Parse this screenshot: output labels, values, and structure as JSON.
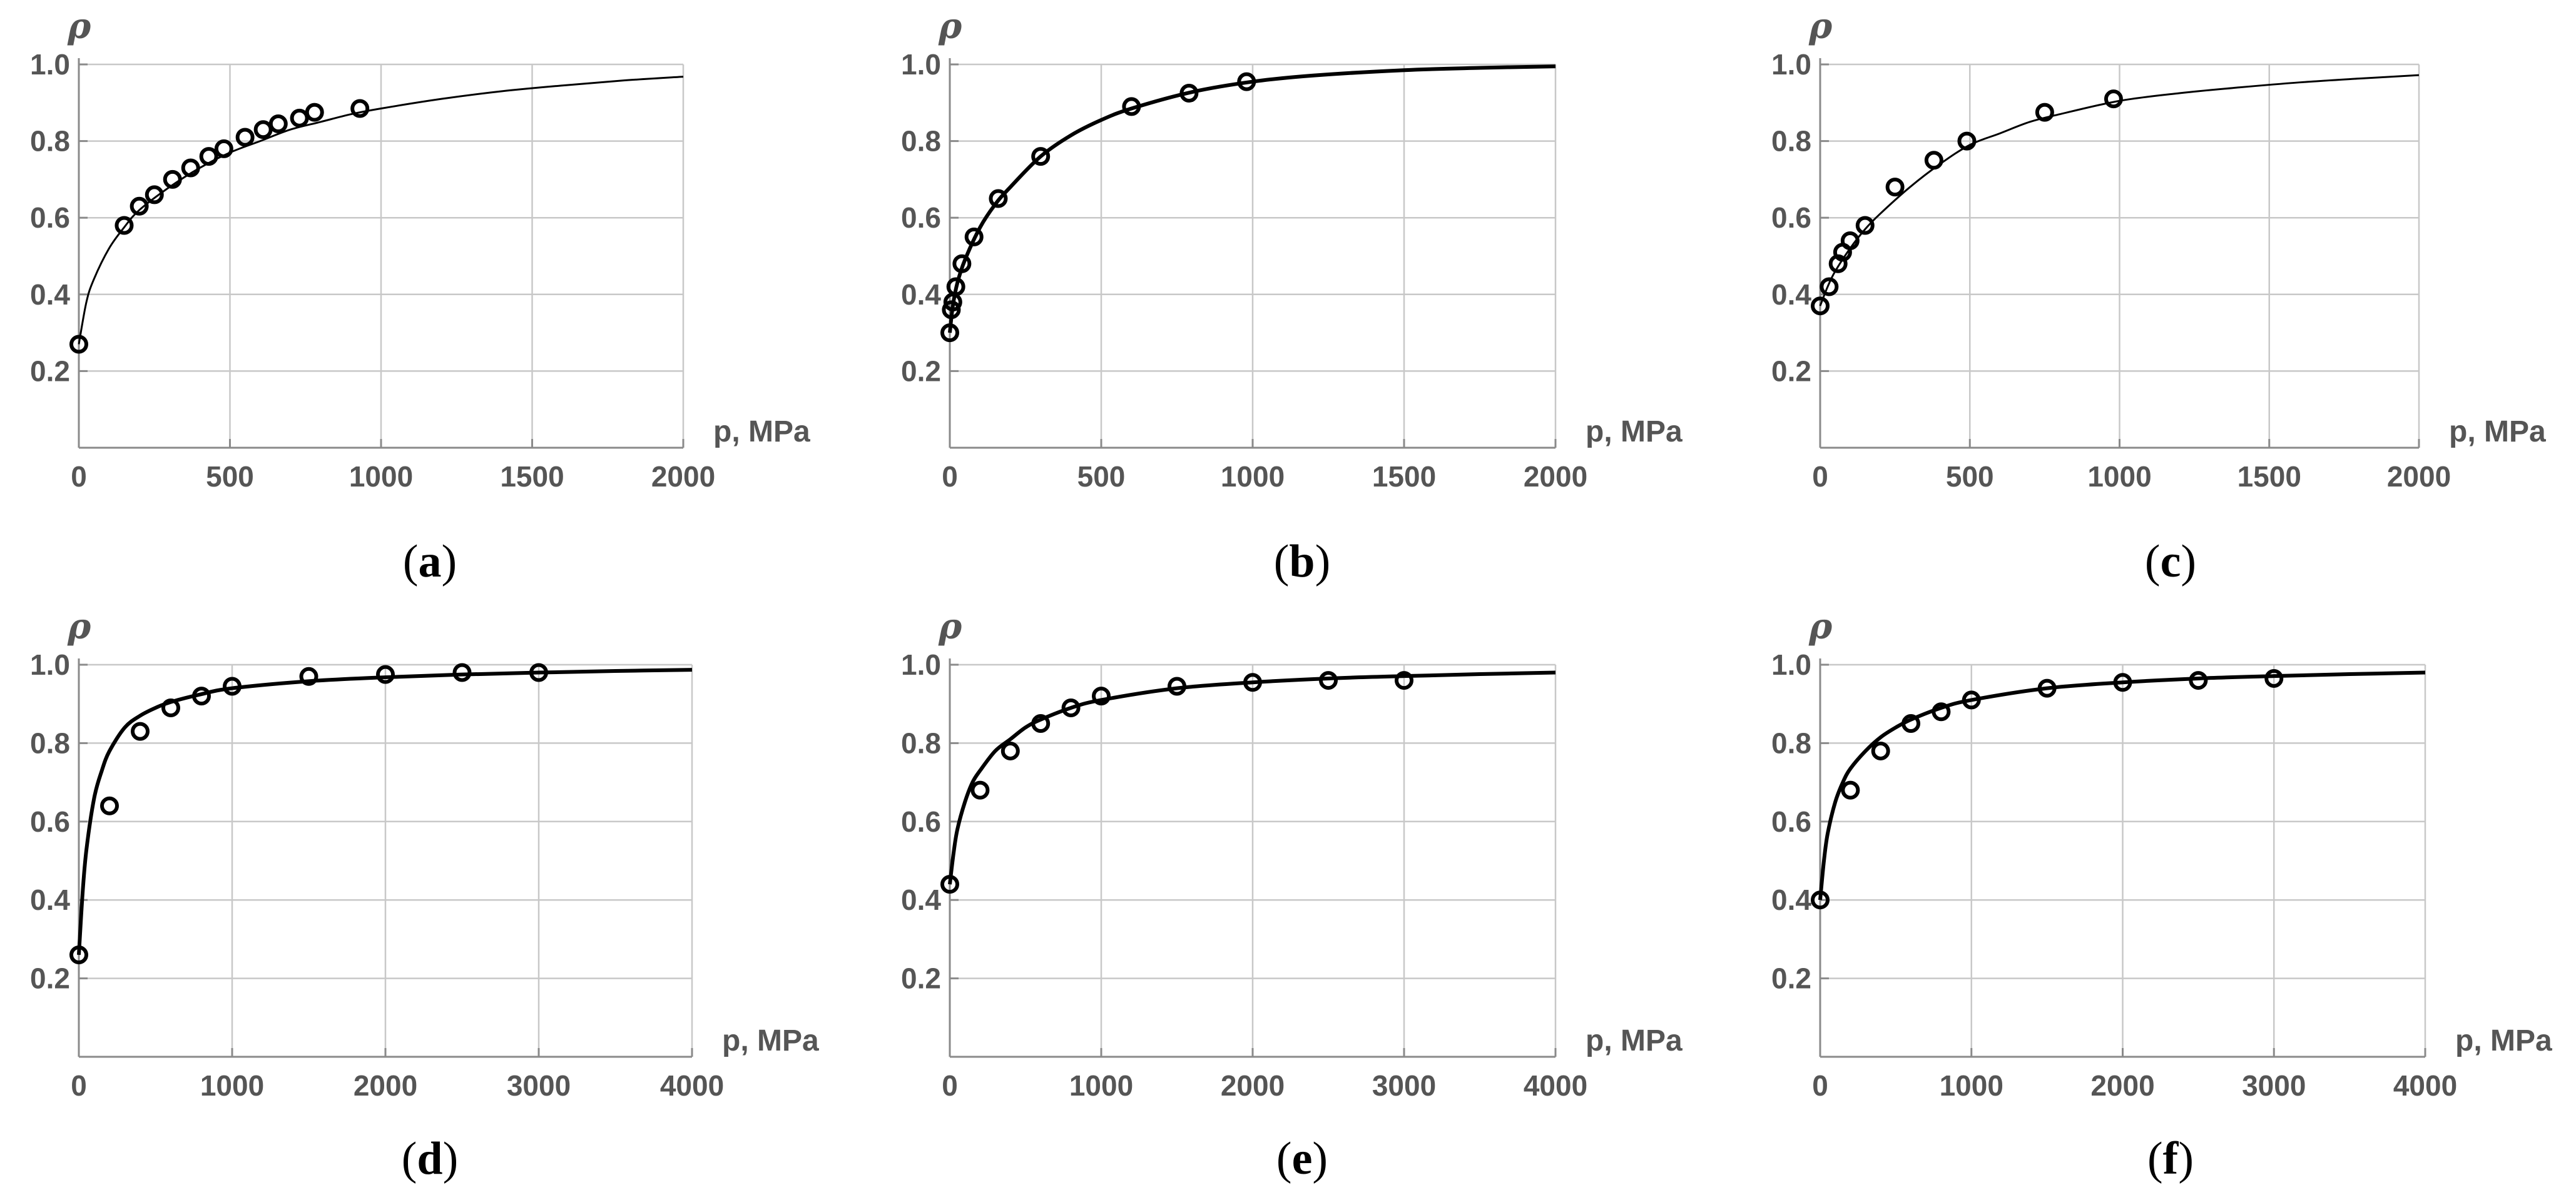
{
  "figure": {
    "colors": {
      "curve": "#000000",
      "points": "#000000",
      "grid": "#c8c8c8",
      "axis": "#8a8a8a",
      "tick_text": "#555555"
    }
  },
  "chart_data": [
    {
      "id": "a",
      "type": "scatter",
      "panel_label": "a",
      "xlabel": "p, MPa",
      "ylabel": "ρ",
      "xlim": [
        0,
        2000
      ],
      "ylim": [
        0,
        1.0
      ],
      "x_ticks": [
        0,
        500,
        1000,
        1500,
        2000
      ],
      "x_tick_labels": [
        "0",
        "500",
        "1000",
        "1500",
        "2000"
      ],
      "y_ticks": [
        0.2,
        0.4,
        0.6,
        0.8,
        1.0
      ],
      "y_tick_labels": [
        "0.2",
        "0.4",
        "0.6",
        "0.8",
        "1.0"
      ],
      "grid": true,
      "series": [
        {
          "kind": "points",
          "x": [
            0,
            150,
            200,
            250,
            310,
            370,
            430,
            480,
            550,
            610,
            660,
            730,
            780,
            930
          ],
          "y": [
            0.27,
            0.58,
            0.63,
            0.66,
            0.7,
            0.73,
            0.76,
            0.78,
            0.81,
            0.83,
            0.845,
            0.86,
            0.875,
            0.885
          ]
        },
        {
          "kind": "line",
          "x": [
            0,
            25,
            50,
            100,
            150,
            200,
            300,
            400,
            500,
            600,
            700,
            800,
            900,
            1000,
            1200,
            1400,
            1600,
            1800,
            2000
          ],
          "y": [
            0.27,
            0.38,
            0.44,
            0.52,
            0.575,
            0.62,
            0.68,
            0.73,
            0.77,
            0.8,
            0.83,
            0.85,
            0.87,
            0.885,
            0.91,
            0.93,
            0.945,
            0.958,
            0.968
          ]
        }
      ]
    },
    {
      "id": "b",
      "type": "scatter",
      "panel_label": "b",
      "xlabel": "p, MPa",
      "ylabel": "ρ",
      "xlim": [
        0,
        2000
      ],
      "ylim": [
        0,
        1.0
      ],
      "x_ticks": [
        0,
        500,
        1000,
        1500,
        2000
      ],
      "x_tick_labels": [
        "0",
        "500",
        "1000",
        "1500",
        "2000"
      ],
      "y_ticks": [
        0.2,
        0.4,
        0.6,
        0.8,
        1.0
      ],
      "y_tick_labels": [
        "0.2",
        "0.4",
        "0.6",
        "0.8",
        "1.0"
      ],
      "grid": true,
      "series": [
        {
          "kind": "points",
          "x": [
            0,
            5,
            10,
            20,
            40,
            80,
            160,
            300,
            600,
            790,
            980
          ],
          "y": [
            0.3,
            0.36,
            0.38,
            0.42,
            0.48,
            0.55,
            0.65,
            0.76,
            0.89,
            0.925,
            0.955
          ]
        },
        {
          "kind": "line",
          "x": [
            0,
            10,
            25,
            50,
            100,
            150,
            200,
            300,
            400,
            500,
            600,
            800,
            1000,
            1200,
            1500,
            1750,
            2000
          ],
          "y": [
            0.3,
            0.37,
            0.43,
            0.49,
            0.575,
            0.635,
            0.68,
            0.76,
            0.815,
            0.855,
            0.885,
            0.928,
            0.955,
            0.971,
            0.985,
            0.991,
            0.995
          ]
        }
      ]
    },
    {
      "id": "c",
      "type": "scatter",
      "panel_label": "c",
      "xlabel": "p, MPa",
      "ylabel": "ρ",
      "xlim": [
        0,
        2000
      ],
      "ylim": [
        0,
        1.0
      ],
      "x_ticks": [
        0,
        500,
        1000,
        1500,
        2000
      ],
      "x_tick_labels": [
        "0",
        "500",
        "1000",
        "1500",
        "2000"
      ],
      "y_ticks": [
        0.2,
        0.4,
        0.6,
        0.8,
        1.0
      ],
      "y_tick_labels": [
        "0.2",
        "0.4",
        "0.6",
        "0.8",
        "1.0"
      ],
      "grid": true,
      "series": [
        {
          "kind": "points",
          "x": [
            0,
            30,
            60,
            75,
            100,
            150,
            250,
            380,
            490,
            750,
            980
          ],
          "y": [
            0.37,
            0.42,
            0.48,
            0.51,
            0.54,
            0.58,
            0.68,
            0.75,
            0.8,
            0.875,
            0.91
          ]
        },
        {
          "kind": "line",
          "x": [
            0,
            25,
            50,
            100,
            150,
            200,
            300,
            400,
            500,
            600,
            700,
            800,
            1000,
            1200,
            1400,
            1600,
            1800,
            2000
          ],
          "y": [
            0.37,
            0.42,
            0.46,
            0.52,
            0.57,
            0.61,
            0.68,
            0.74,
            0.79,
            0.82,
            0.85,
            0.87,
            0.905,
            0.925,
            0.94,
            0.953,
            0.963,
            0.972
          ]
        }
      ]
    },
    {
      "id": "d",
      "type": "scatter",
      "panel_label": "d",
      "xlabel": "p, MPa",
      "ylabel": "ρ",
      "xlim": [
        0,
        4000
      ],
      "ylim": [
        0,
        1.0
      ],
      "x_ticks": [
        0,
        1000,
        2000,
        3000,
        4000
      ],
      "x_tick_labels": [
        "0",
        "1000",
        "2000",
        "3000",
        "4000"
      ],
      "y_ticks": [
        0.2,
        0.4,
        0.6,
        0.8,
        1.0
      ],
      "y_tick_labels": [
        "0.2",
        "0.4",
        "0.6",
        "0.8",
        "1.0"
      ],
      "grid": true,
      "series": [
        {
          "kind": "points",
          "x": [
            0,
            200,
            400,
            600,
            800,
            1000,
            1500,
            2000,
            2500,
            3000
          ],
          "y": [
            0.26,
            0.64,
            0.83,
            0.89,
            0.92,
            0.945,
            0.97,
            0.975,
            0.98,
            0.98
          ]
        },
        {
          "kind": "line",
          "x": [
            0,
            25,
            50,
            100,
            150,
            200,
            300,
            400,
            500,
            600,
            800,
            1000,
            1500,
            2000,
            2500,
            3000,
            3500,
            4000
          ],
          "y": [
            0.26,
            0.42,
            0.53,
            0.66,
            0.73,
            0.78,
            0.84,
            0.87,
            0.89,
            0.905,
            0.925,
            0.94,
            0.958,
            0.968,
            0.975,
            0.98,
            0.984,
            0.987
          ]
        }
      ]
    },
    {
      "id": "e",
      "type": "scatter",
      "panel_label": "e",
      "xlabel": "p, MPa",
      "ylabel": "ρ",
      "xlim": [
        0,
        4000
      ],
      "ylim": [
        0,
        1.0
      ],
      "x_ticks": [
        0,
        1000,
        2000,
        3000,
        4000
      ],
      "x_tick_labels": [
        "0",
        "1000",
        "2000",
        "3000",
        "4000"
      ],
      "y_ticks": [
        0.2,
        0.4,
        0.6,
        0.8,
        1.0
      ],
      "y_tick_labels": [
        "0.2",
        "0.4",
        "0.6",
        "0.8",
        "1.0"
      ],
      "grid": true,
      "series": [
        {
          "kind": "points",
          "x": [
            0,
            200,
            400,
            600,
            800,
            1000,
            1500,
            2000,
            2500,
            3000
          ],
          "y": [
            0.44,
            0.68,
            0.78,
            0.85,
            0.89,
            0.92,
            0.945,
            0.955,
            0.96,
            0.96
          ]
        },
        {
          "kind": "line",
          "x": [
            0,
            25,
            50,
            100,
            150,
            200,
            300,
            400,
            500,
            600,
            800,
            1000,
            1500,
            2000,
            2500,
            3000,
            3500,
            4000
          ],
          "y": [
            0.44,
            0.52,
            0.58,
            0.65,
            0.7,
            0.73,
            0.78,
            0.81,
            0.84,
            0.86,
            0.89,
            0.91,
            0.94,
            0.955,
            0.965,
            0.971,
            0.976,
            0.98
          ]
        }
      ]
    },
    {
      "id": "f",
      "type": "scatter",
      "panel_label": "f",
      "xlabel": "p, MPa",
      "ylabel": "ρ",
      "xlim": [
        0,
        4000
      ],
      "ylim": [
        0,
        1.0
      ],
      "x_ticks": [
        0,
        1000,
        2000,
        3000,
        4000
      ],
      "x_tick_labels": [
        "0",
        "1000",
        "2000",
        "3000",
        "4000"
      ],
      "y_ticks": [
        0.2,
        0.4,
        0.6,
        0.8,
        1.0
      ],
      "y_tick_labels": [
        "0.2",
        "0.4",
        "0.6",
        "0.8",
        "1.0"
      ],
      "grid": true,
      "series": [
        {
          "kind": "points",
          "x": [
            0,
            200,
            400,
            600,
            800,
            1000,
            1500,
            2000,
            2500,
            3000
          ],
          "y": [
            0.4,
            0.68,
            0.78,
            0.85,
            0.88,
            0.91,
            0.94,
            0.955,
            0.96,
            0.965
          ]
        },
        {
          "kind": "line",
          "x": [
            0,
            25,
            50,
            100,
            150,
            200,
            300,
            400,
            500,
            600,
            800,
            1000,
            1500,
            2000,
            2500,
            3000,
            3500,
            4000
          ],
          "y": [
            0.4,
            0.5,
            0.57,
            0.65,
            0.7,
            0.735,
            0.78,
            0.815,
            0.84,
            0.86,
            0.89,
            0.91,
            0.94,
            0.955,
            0.965,
            0.971,
            0.976,
            0.98
          ]
        }
      ]
    }
  ]
}
